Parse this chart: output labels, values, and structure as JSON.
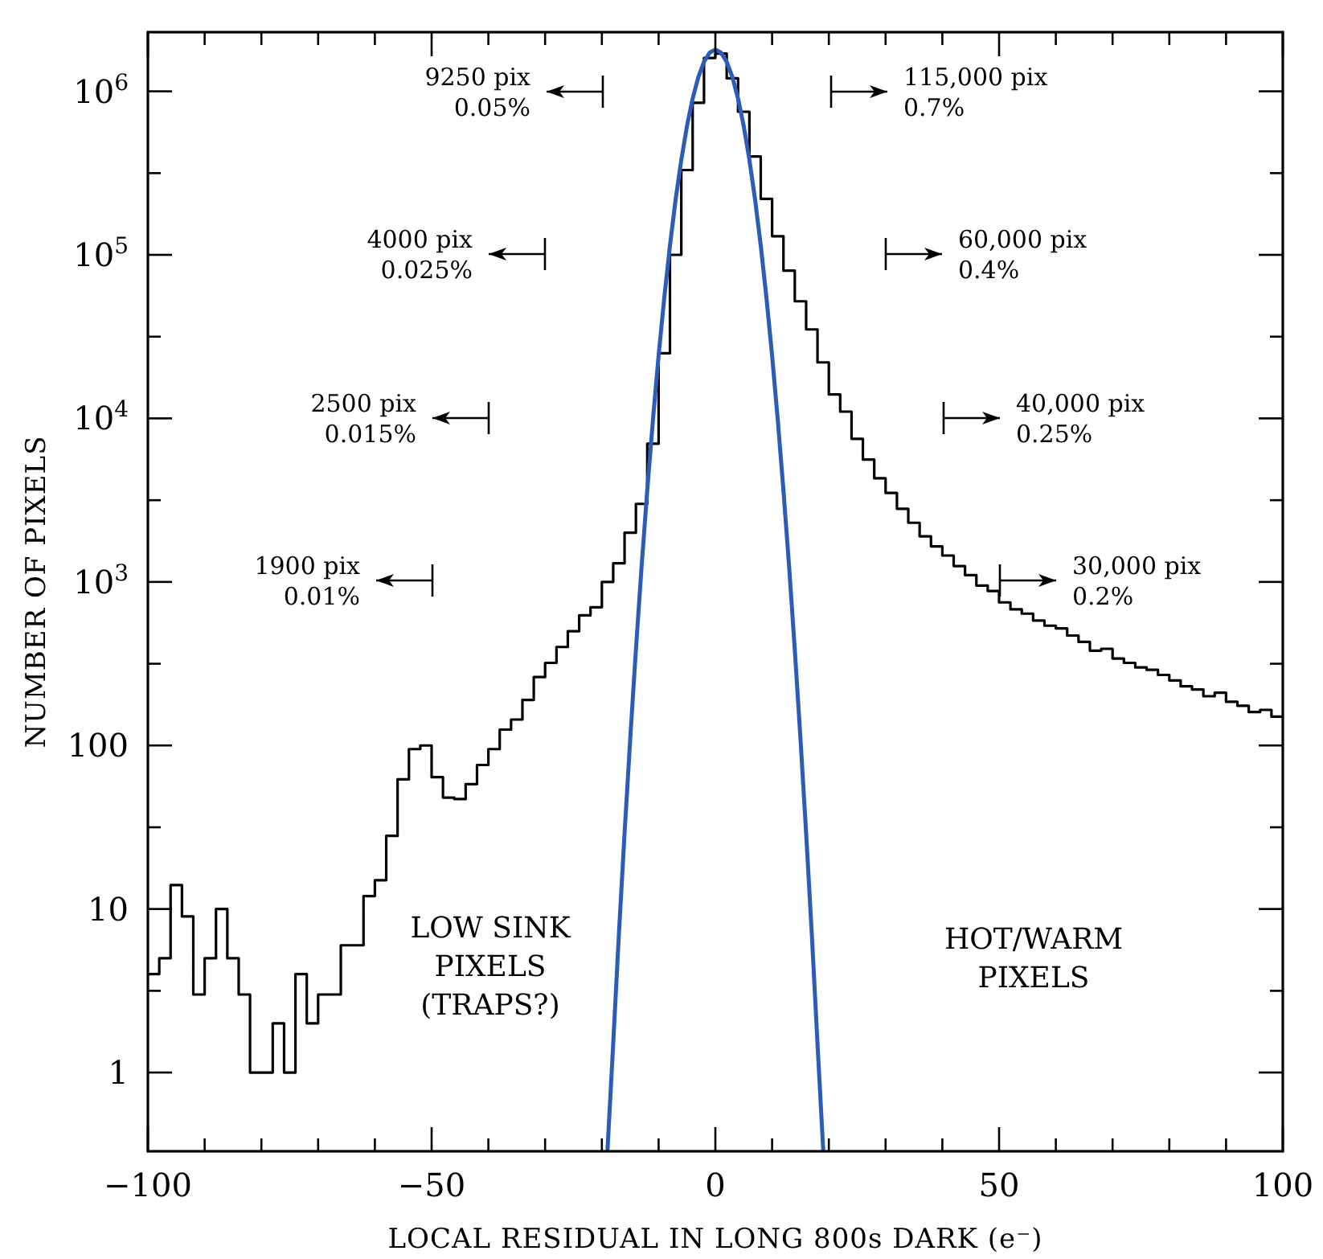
{
  "chart_data": {
    "type": "histogram",
    "xlabel": "LOCAL RESIDUAL IN LONG 800s DARK (e⁻)",
    "ylabel": "NUMBER OF PIXELS",
    "log": true,
    "xlim": [
      -100,
      100
    ],
    "xticks": [
      {
        "value": -100,
        "label": "−100"
      },
      {
        "value": -90,
        "label": null
      },
      {
        "value": -80,
        "label": null
      },
      {
        "value": -70,
        "label": null
      },
      {
        "value": -60,
        "label": null
      },
      {
        "value": -50,
        "label": "−50"
      },
      {
        "value": -40,
        "label": null
      },
      {
        "value": -30,
        "label": null
      },
      {
        "value": -20,
        "label": null
      },
      {
        "value": -10,
        "label": null
      },
      0,
      {
        "value": 10,
        "label": null
      },
      {
        "value": 20,
        "label": null
      },
      {
        "value": 30,
        "label": null
      },
      {
        "value": 40,
        "label": null
      },
      50,
      {
        "value": 60,
        "label": null
      },
      {
        "value": 70,
        "label": null
      },
      {
        "value": 80,
        "label": null
      },
      {
        "value": 90,
        "label": null
      },
      100
    ],
    "ylim": [
      0.33,
      2300000
    ],
    "yticks": [
      1,
      {
        "value": 3.16,
        "label": null
      },
      10,
      {
        "value": 31.6,
        "label": null
      },
      100,
      {
        "value": 316,
        "label": null
      },
      {
        "value": 1000,
        "label": "10$^{3}$"
      },
      {
        "value": 3160,
        "label": null
      },
      {
        "value": 10000,
        "label": "10$^{4}$"
      },
      {
        "value": 31600,
        "label": null
      },
      {
        "value": 100000,
        "label": "10$^{5}$"
      },
      {
        "value": 316000,
        "label": null
      },
      {
        "value": 1000000,
        "label": "10$^{6}$"
      }
    ],
    "series": [
      {
        "type": "histogram",
        "color": "#000000",
        "bins": [
          -100,
          -98,
          -96,
          -94,
          -92,
          -90,
          -88,
          -86,
          -84,
          -82,
          -80,
          -78,
          -76,
          -74,
          -72,
          -70,
          -68,
          -66,
          -64,
          -62,
          -60,
          -58,
          -56,
          -54,
          -52,
          -50,
          -48,
          -46,
          -44,
          -42,
          -40,
          -38,
          -36,
          -34,
          -32,
          -30,
          -28,
          -26,
          -24,
          -22,
          -20,
          -18,
          -16,
          -14,
          -12,
          -10,
          -8,
          -6,
          -4,
          -2,
          0,
          2,
          4,
          6,
          8,
          10,
          12,
          14,
          16,
          18,
          20,
          22,
          24,
          26,
          28,
          30,
          32,
          34,
          36,
          38,
          40,
          42,
          44,
          46,
          48,
          50,
          52,
          54,
          56,
          58,
          60,
          62,
          64,
          66,
          68,
          70,
          72,
          74,
          76,
          78,
          80,
          82,
          84,
          86,
          88,
          90,
          92,
          94,
          96,
          98,
          100
        ],
        "values": [
          4,
          5,
          14,
          9,
          3,
          5,
          10,
          5,
          3,
          1,
          1,
          2,
          1,
          4,
          2,
          3,
          3,
          6,
          6,
          12,
          15,
          28,
          62,
          95,
          100,
          64,
          48,
          47,
          58,
          76,
          95,
          125,
          144,
          190,
          262,
          320,
          400,
          500,
          625,
          700,
          1000,
          1300,
          2000,
          3000,
          7000,
          25000,
          100000,
          330000,
          850000,
          1600000,
          1700000,
          1200000,
          750000,
          400000,
          220000,
          130000,
          80000,
          52000,
          35000,
          22000,
          14000,
          11000,
          7500,
          5600,
          4300,
          3500,
          2800,
          2300,
          1900,
          1650,
          1450,
          1250,
          1100,
          950,
          880,
          750,
          680,
          640,
          580,
          540,
          520,
          470,
          430,
          380,
          390,
          340,
          320,
          300,
          290,
          270,
          250,
          230,
          220,
          200,
          210,
          185,
          175,
          160,
          165,
          150
        ]
      },
      {
        "type": "line",
        "color": "#2a5cb8",
        "x": [
          -19,
          -18,
          -17,
          -16,
          -15,
          -14,
          -13,
          -12,
          -11,
          -10,
          -9,
          -8,
          -7,
          -6,
          -5,
          -4,
          -3,
          -2,
          -1,
          0,
          1,
          2,
          3,
          4,
          5,
          6,
          7,
          8,
          9,
          10,
          11,
          12,
          13,
          14,
          15,
          16,
          17,
          18,
          19
        ],
        "values": [
          0.34,
          1.5,
          7,
          29,
          110,
          385,
          1240,
          3630,
          9780,
          24200,
          54800,
          114000,
          218000,
          381000,
          613000,
          903000,
          1221000,
          1515000,
          1724000,
          1800000,
          1724000,
          1515000,
          1221000,
          903000,
          613000,
          381000,
          218000,
          114000,
          54800,
          24200,
          9780,
          3630,
          1240,
          385,
          110,
          29,
          7,
          1.5,
          0.34
        ]
      }
    ],
    "annotations": [
      "9250 pix\n0.05%",
      "4000 pix\n0.025%",
      "2500 pix\n0.015%",
      "1900 pix\n0.01%",
      "115,000 pix\n0.7%",
      "60,000 pix\n0.4%",
      "40,000 pix\n0.25%",
      "30,000 pix\n0.2%",
      "LOW SINK\nPIXELS\n(TRAPS?)",
      "HOT/WARM\nPIXELS"
    ]
  }
}
